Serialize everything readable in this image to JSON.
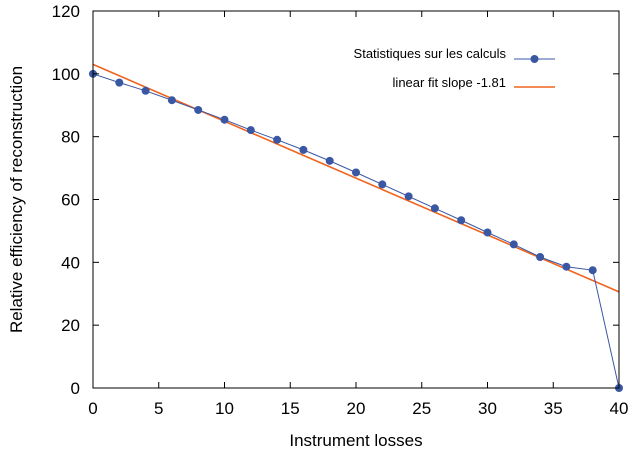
{
  "chart_data": {
    "type": "line",
    "title": "",
    "xlabel": "Instrument losses",
    "ylabel": "Relative efficiency of reconstruction",
    "xlim": [
      0,
      40
    ],
    "ylim": [
      0,
      120
    ],
    "xticks": [
      0,
      5,
      10,
      15,
      20,
      25,
      30,
      35,
      40
    ],
    "yticks": [
      0,
      20,
      40,
      60,
      80,
      100,
      120
    ],
    "grid": false,
    "legend_position": "top-right",
    "series": [
      {
        "name": "Statistiques sur les calculs",
        "style": "line-with-markers",
        "color": "#3a57a3",
        "x": [
          0,
          2,
          4,
          6,
          8,
          10,
          12,
          14,
          16,
          18,
          20,
          22,
          24,
          26,
          28,
          30,
          32,
          34,
          36,
          38,
          40
        ],
        "y": [
          100,
          97.2,
          94.6,
          91.6,
          88.5,
          85.4,
          82.1,
          79.0,
          75.8,
          72.3,
          68.6,
          64.8,
          61.0,
          57.2,
          53.4,
          49.5,
          45.7,
          41.7,
          38.6,
          37.5,
          0
        ]
      },
      {
        "name": "linear fit slope -1.81",
        "style": "line",
        "color": "#f0641e",
        "x": [
          0,
          40
        ],
        "y": [
          103,
          30.6
        ]
      }
    ]
  }
}
